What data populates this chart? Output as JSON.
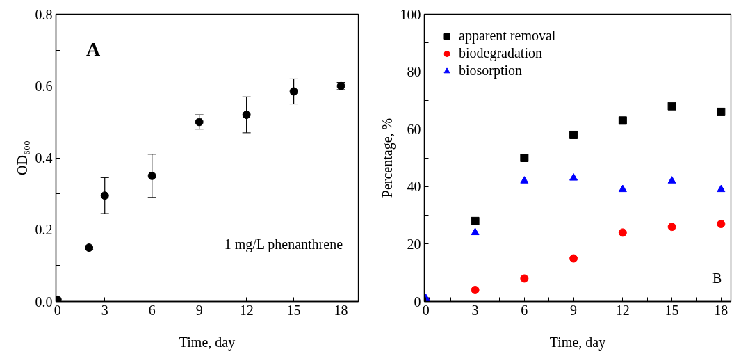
{
  "chart_data": [
    {
      "type": "scatter",
      "xlabel": "Time, day",
      "ylabel": "OD₆₀₀",
      "annotations": [
        "A",
        "1 mg/L phenanthrene"
      ],
      "xlim": [
        -0.1,
        19.1
      ],
      "xticks": [
        0,
        3,
        6,
        9,
        12,
        15,
        18
      ],
      "ylim": [
        0,
        0.8
      ],
      "yticks": [
        {
          "value": 0,
          "label": "0.0"
        },
        {
          "value": 0.1,
          "label": null
        },
        0.2,
        {
          "value": 0.3,
          "label": null
        },
        0.4,
        {
          "value": 0.5,
          "label": null
        },
        0.6,
        {
          "value": 0.7,
          "label": null
        },
        0.8
      ],
      "marker": "circle",
      "series": [
        {
          "color": "#000000",
          "x": [
            0,
            2,
            3,
            6,
            9,
            12,
            15,
            18
          ],
          "values": [
            0.005,
            0.15,
            0.295,
            0.35,
            0.5,
            0.52,
            0.585,
            0.6
          ],
          "errors": [
            null,
            0.005,
            [
              0.245,
              0.345
            ],
            [
              0.29,
              0.41
            ],
            [
              0.48,
              0.52
            ],
            [
              0.47,
              0.57
            ],
            [
              0.55,
              0.62
            ],
            [
              0.59,
              0.61
            ]
          ]
        }
      ]
    },
    {
      "type": "scatter",
      "xlabel": "Time, day",
      "ylabel": "Percentage, %",
      "annotations": [
        "B"
      ],
      "xlim": [
        -0.1,
        18.6
      ],
      "xticks": [
        0,
        {
          "value": 1.5,
          "label": null
        },
        3,
        {
          "value": 4.5,
          "label": null
        },
        6,
        {
          "value": 7.5,
          "label": null
        },
        9,
        {
          "value": 10.5,
          "label": null
        },
        12,
        {
          "value": 13.5,
          "label": null
        },
        15,
        {
          "value": 16.5,
          "label": null
        },
        18
      ],
      "ylim": [
        0,
        100
      ],
      "yticks": [
        0,
        {
          "value": 10,
          "label": null
        },
        20,
        {
          "value": 30,
          "label": null
        },
        40,
        {
          "value": 50,
          "label": null
        },
        60,
        {
          "value": 70,
          "label": null
        },
        80,
        {
          "value": 90,
          "label": null
        },
        100
      ],
      "legend": "top left",
      "x": [
        0,
        3,
        6,
        9,
        12,
        15,
        18
      ],
      "series": [
        {
          "name": "apparent removal",
          "color": "#000000",
          "marker": "square",
          "values": [
            0,
            28,
            50,
            58,
            63,
            68,
            66
          ]
        },
        {
          "name": "biodegradation",
          "color": "#ff0000",
          "marker": "circle",
          "values": [
            null,
            4,
            8,
            15,
            24,
            26,
            27
          ]
        },
        {
          "name": "biosorption",
          "color": "#0000ff",
          "marker": "triangle",
          "values": [
            1,
            24,
            42,
            43,
            39,
            42,
            39
          ]
        }
      ]
    }
  ]
}
